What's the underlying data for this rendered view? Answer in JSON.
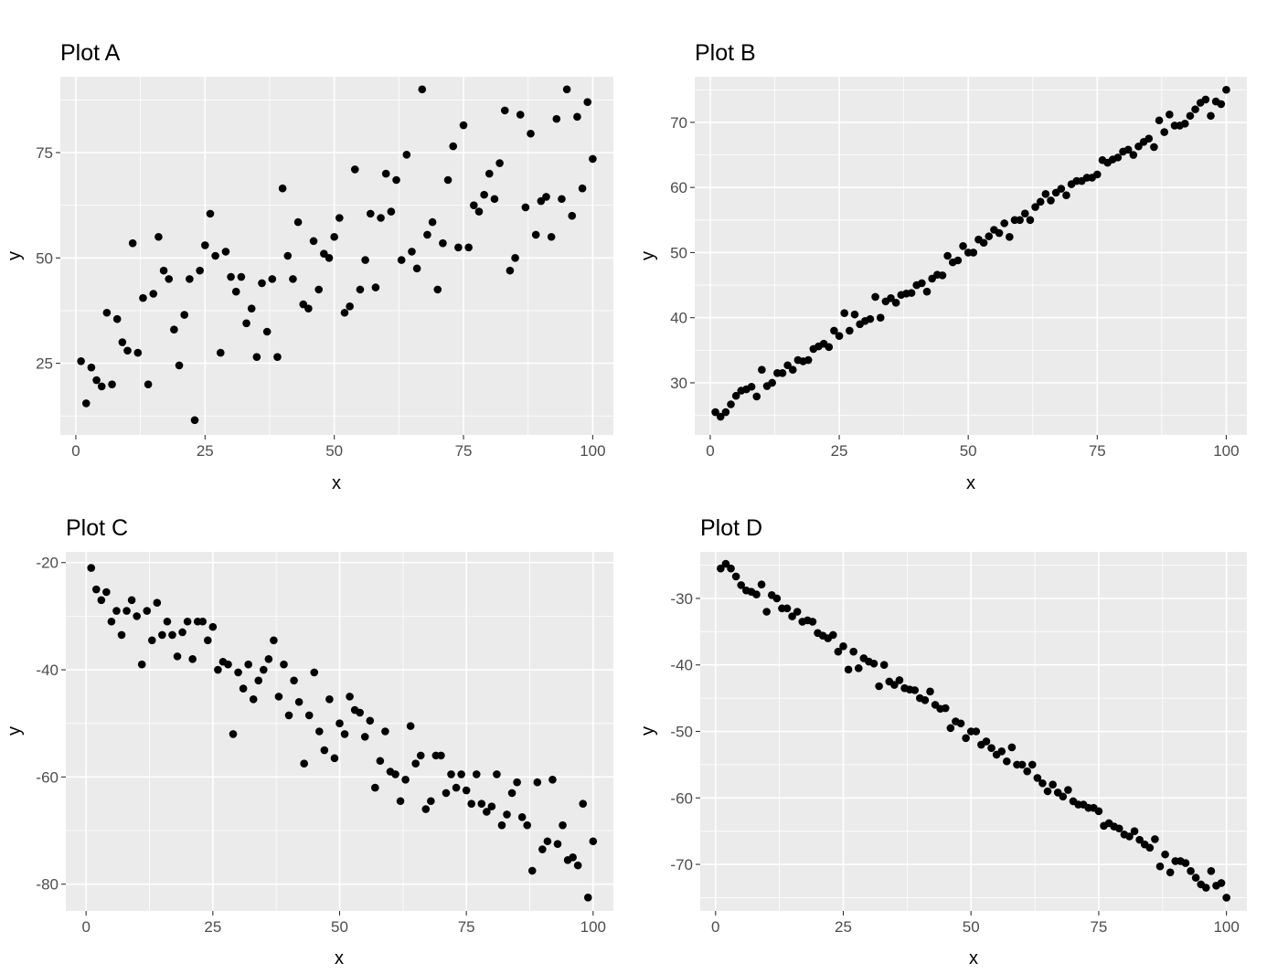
{
  "chart_data": [
    {
      "type": "scatter",
      "title": "Plot A",
      "xlabel": "x",
      "ylabel": "y",
      "xlim": [
        -3,
        104
      ],
      "ylim": [
        8,
        93
      ],
      "xticks": [
        0,
        25,
        50,
        75,
        100
      ],
      "yticks": [
        25,
        50,
        75
      ],
      "xticklabels": [
        "0",
        "25",
        "50",
        "75",
        "100"
      ],
      "yticklabels": [
        "25",
        "50",
        "75"
      ],
      "grid": true,
      "points_color": "#000000",
      "x": [
        1,
        2,
        3,
        4,
        5,
        6,
        7,
        8,
        9,
        10,
        11,
        12,
        13,
        14,
        15,
        16,
        17,
        18,
        19,
        20,
        21,
        22,
        23,
        24,
        25,
        26,
        27,
        28,
        29,
        30,
        31,
        32,
        33,
        34,
        35,
        36,
        37,
        38,
        39,
        40,
        41,
        42,
        43,
        44,
        45,
        46,
        47,
        48,
        49,
        50,
        51,
        52,
        53,
        54,
        55,
        56,
        57,
        58,
        59,
        60,
        61,
        62,
        63,
        64,
        65,
        66,
        67,
        68,
        69,
        70,
        71,
        72,
        73,
        74,
        75,
        76,
        77,
        78,
        79,
        80,
        81,
        82,
        83,
        84,
        85,
        86,
        87,
        88,
        89,
        90,
        91,
        92,
        93,
        94,
        95,
        96,
        97,
        98,
        99,
        100
      ],
      "y": [
        25.5,
        15.5,
        24,
        21,
        19.5,
        37,
        20,
        35.5,
        30,
        28,
        53.5,
        27.5,
        40.5,
        20,
        41.5,
        55,
        47,
        45,
        33,
        24.5,
        36.5,
        45,
        11.5,
        47,
        53,
        60.5,
        50.5,
        27.5,
        51.5,
        45.5,
        42,
        45.5,
        34.5,
        38,
        26.5,
        44,
        32.5,
        45,
        26.5,
        66.5,
        50.5,
        45,
        58.5,
        39,
        38,
        54,
        42.5,
        51,
        50,
        55,
        59.5,
        37,
        38.5,
        71,
        42.5,
        49.5,
        60.5,
        43,
        59.5,
        70,
        61,
        68.5,
        49.5,
        74.5,
        51.5,
        47.5,
        90,
        55.5,
        58.5,
        42.5,
        53.5,
        68.5,
        76.5,
        52.5,
        81.5,
        52.5,
        62.5,
        61,
        65,
        70,
        64,
        72.5,
        85,
        47,
        50,
        84,
        62,
        79.5,
        55.5,
        63.5,
        64.5,
        55,
        83,
        64,
        90,
        60,
        83.5,
        66.5,
        87,
        73.5
      ]
    },
    {
      "type": "scatter",
      "title": "Plot B",
      "xlabel": "x",
      "ylabel": "y",
      "xlim": [
        -3,
        104
      ],
      "ylim": [
        22,
        77
      ],
      "xticks": [
        0,
        25,
        50,
        75,
        100
      ],
      "yticks": [
        30,
        40,
        50,
        60,
        70
      ],
      "xticklabels": [
        "0",
        "25",
        "50",
        "75",
        "100"
      ],
      "yticklabels": [
        "30",
        "40",
        "50",
        "60",
        "70"
      ],
      "grid": true,
      "points_color": "#000000",
      "x": [
        1,
        2,
        3,
        4,
        5,
        6,
        7,
        8,
        9,
        10,
        11,
        12,
        13,
        14,
        15,
        16,
        17,
        18,
        19,
        20,
        21,
        22,
        23,
        24,
        25,
        26,
        27,
        28,
        29,
        30,
        31,
        32,
        33,
        34,
        35,
        36,
        37,
        38,
        39,
        40,
        41,
        42,
        43,
        44,
        45,
        46,
        47,
        48,
        49,
        50,
        51,
        52,
        53,
        54,
        55,
        56,
        57,
        58,
        59,
        60,
        61,
        62,
        63,
        64,
        65,
        66,
        67,
        68,
        69,
        70,
        71,
        72,
        73,
        74,
        75,
        76,
        77,
        78,
        79,
        80,
        81,
        82,
        83,
        84,
        85,
        86,
        87,
        88,
        89,
        90,
        91,
        92,
        93,
        94,
        95,
        96,
        97,
        98,
        99,
        100
      ],
      "y": [
        25.5,
        24.8,
        25.5,
        26.7,
        28,
        28.8,
        29,
        29.4,
        27.9,
        32,
        29.5,
        30,
        31.5,
        31.5,
        32.7,
        32,
        33.5,
        33.3,
        33.5,
        35.2,
        35.6,
        36,
        35.5,
        38,
        37.2,
        40.7,
        38,
        40.5,
        39,
        39.5,
        39.8,
        43.2,
        40,
        42.5,
        43,
        42.3,
        43.5,
        43.7,
        43.8,
        45,
        45.3,
        44,
        46,
        46.6,
        46.5,
        49.5,
        48.5,
        48.8,
        51,
        50,
        50,
        52,
        51.5,
        52.5,
        53.5,
        53,
        54.5,
        52.4,
        55,
        55,
        56,
        55,
        57,
        57.8,
        59,
        58,
        59.2,
        59.8,
        58.8,
        60.5,
        61,
        61,
        61.5,
        61.5,
        62,
        64.2,
        63.8,
        64.3,
        64.6,
        65.5,
        65.8,
        65,
        66.3,
        67,
        67.5,
        66.2,
        70.3,
        68.5,
        71.2,
        69.5,
        69.5,
        69.8,
        71,
        72,
        73,
        73.5,
        71,
        73.2,
        72.8,
        75
      ]
    },
    {
      "type": "scatter",
      "title": "Plot C",
      "xlabel": "x",
      "ylabel": "y",
      "xlim": [
        -4,
        104
      ],
      "ylim": [
        -85,
        -18
      ],
      "xticks": [
        0,
        25,
        50,
        75,
        100
      ],
      "yticks": [
        -80,
        -60,
        -40,
        -20
      ],
      "xticklabels": [
        "0",
        "25",
        "50",
        "75",
        "100"
      ],
      "yticklabels": [
        "-80",
        "-60",
        "-40",
        "-20"
      ],
      "grid": true,
      "points_color": "#000000",
      "x": [
        1,
        2,
        3,
        4,
        5,
        6,
        7,
        8,
        9,
        10,
        11,
        12,
        13,
        14,
        15,
        16,
        17,
        18,
        19,
        20,
        21,
        22,
        23,
        24,
        25,
        26,
        27,
        28,
        29,
        30,
        31,
        32,
        33,
        34,
        35,
        36,
        37,
        38,
        39,
        40,
        41,
        42,
        43,
        44,
        45,
        46,
        47,
        48,
        49,
        50,
        51,
        52,
        53,
        54,
        55,
        56,
        57,
        58,
        59,
        60,
        61,
        62,
        63,
        64,
        65,
        66,
        67,
        68,
        69,
        70,
        71,
        72,
        73,
        74,
        75,
        76,
        77,
        78,
        79,
        80,
        81,
        82,
        83,
        84,
        85,
        86,
        87,
        88,
        89,
        90,
        91,
        92,
        93,
        94,
        95,
        96,
        97,
        98,
        99,
        100
      ],
      "y": [
        -21,
        -25,
        -27,
        -25.5,
        -31,
        -29,
        -33.5,
        -29,
        -27,
        -30,
        -39,
        -29,
        -34.5,
        -27.5,
        -33.5,
        -31,
        -33.5,
        -37.5,
        -33,
        -31,
        -38,
        -31,
        -31,
        -34.5,
        -32,
        -40,
        -38.5,
        -39,
        -52,
        -40.5,
        -43.5,
        -39,
        -45.5,
        -42,
        -40,
        -38,
        -34.5,
        -45,
        -39,
        -48.5,
        -42,
        -46,
        -57.5,
        -48.5,
        -40.5,
        -51.5,
        -55,
        -45.5,
        -56.5,
        -50,
        -52,
        -45,
        -47.5,
        -48,
        -52.5,
        -49.5,
        -62,
        -57,
        -51.5,
        -59,
        -59.5,
        -64.5,
        -60.5,
        -50.5,
        -57.5,
        -56,
        -66,
        -64.5,
        -56,
        -56,
        -63,
        -59.5,
        -62,
        -59.5,
        -62.5,
        -65,
        -59.5,
        -65,
        -66.5,
        -65.5,
        -59.5,
        -69,
        -67,
        -63,
        -61,
        -67.5,
        -69,
        -77.5,
        -61,
        -73.5,
        -72,
        -60.5,
        -72.5,
        -69,
        -75.5,
        -75,
        -76.5,
        -65,
        -82.5,
        -72
      ]
    },
    {
      "type": "scatter",
      "title": "Plot D",
      "xlabel": "x",
      "ylabel": "y",
      "xlim": [
        -3,
        104
      ],
      "ylim": [
        -77,
        -23
      ],
      "xticks": [
        0,
        25,
        50,
        75,
        100
      ],
      "yticks": [
        -70,
        -60,
        -50,
        -40,
        -30
      ],
      "xticklabels": [
        "0",
        "25",
        "50",
        "75",
        "100"
      ],
      "yticklabels": [
        "-70",
        "-60",
        "-50",
        "-40",
        "-30"
      ],
      "grid": true,
      "points_color": "#000000",
      "x": [
        1,
        2,
        3,
        4,
        5,
        6,
        7,
        8,
        9,
        10,
        11,
        12,
        13,
        14,
        15,
        16,
        17,
        18,
        19,
        20,
        21,
        22,
        23,
        24,
        25,
        26,
        27,
        28,
        29,
        30,
        31,
        32,
        33,
        34,
        35,
        36,
        37,
        38,
        39,
        40,
        41,
        42,
        43,
        44,
        45,
        46,
        47,
        48,
        49,
        50,
        51,
        52,
        53,
        54,
        55,
        56,
        57,
        58,
        59,
        60,
        61,
        62,
        63,
        64,
        65,
        66,
        67,
        68,
        69,
        70,
        71,
        72,
        73,
        74,
        75,
        76,
        77,
        78,
        79,
        80,
        81,
        82,
        83,
        84,
        85,
        86,
        87,
        88,
        89,
        90,
        91,
        92,
        93,
        94,
        95,
        96,
        97,
        98,
        99,
        100
      ],
      "y": [
        -25.5,
        -24.8,
        -25.5,
        -26.7,
        -28,
        -28.8,
        -29,
        -29.4,
        -27.9,
        -32,
        -29.5,
        -30,
        -31.5,
        -31.5,
        -32.7,
        -32,
        -33.5,
        -33.3,
        -33.5,
        -35.2,
        -35.6,
        -36,
        -35.5,
        -38,
        -37.2,
        -40.7,
        -38,
        -40.5,
        -39,
        -39.5,
        -39.8,
        -43.2,
        -40,
        -42.5,
        -43,
        -42.3,
        -43.5,
        -43.7,
        -43.8,
        -45,
        -45.3,
        -44,
        -46,
        -46.6,
        -46.5,
        -49.5,
        -48.5,
        -48.8,
        -51,
        -50,
        -50,
        -52,
        -51.5,
        -52.5,
        -53.5,
        -53,
        -54.5,
        -52.4,
        -55,
        -55,
        -56,
        -55,
        -57,
        -57.8,
        -59,
        -58,
        -59.2,
        -59.8,
        -58.8,
        -60.5,
        -61,
        -61,
        -61.5,
        -61.5,
        -62,
        -64.2,
        -63.8,
        -64.3,
        -64.6,
        -65.5,
        -65.8,
        -65,
        -66.3,
        -67,
        -67.5,
        -66.2,
        -70.3,
        -68.5,
        -71.2,
        -69.5,
        -69.5,
        -69.8,
        -71,
        -72,
        -73,
        -73.5,
        -71,
        -73.2,
        -72.8,
        -75
      ]
    }
  ]
}
